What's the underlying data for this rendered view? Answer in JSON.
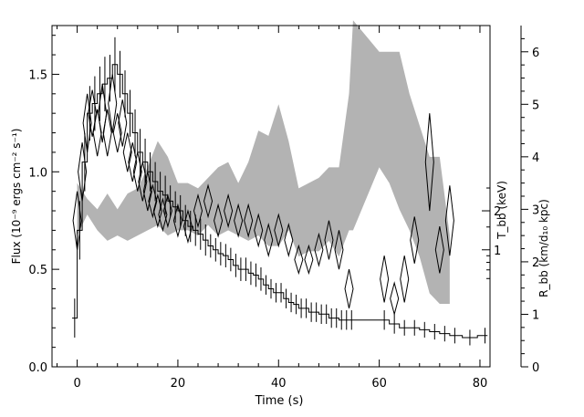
{
  "chart_data": {
    "type": "line",
    "xlabel": "Time (s)",
    "ylabel_left": "Flux (10⁻⁹ ergs cm⁻² s⁻¹)",
    "ylabel_right_kT": "T_bb (keV)",
    "ylabel_right_R": "R_bb (km/d₁₀ kpc)",
    "xlim": [
      -5,
      82
    ],
    "ylim_left": [
      0,
      1.75
    ],
    "ylim_right_R": [
      0,
      6.5
    ],
    "kT_ticks": [
      1,
      2
    ],
    "x_ticks": [
      0,
      20,
      40,
      60,
      80
    ],
    "left_ticks": [
      0.0,
      0.5,
      1.0,
      1.5
    ],
    "left_tick_labels": [
      "0.0",
      "0.5",
      "1.0",
      "1.5"
    ],
    "right_ticks": [
      0,
      1,
      2,
      3,
      4,
      5,
      6
    ],
    "flux": {
      "x": [
        -0.5,
        0.5,
        1.5,
        2.5,
        3.5,
        4.5,
        5.5,
        6.5,
        7.5,
        8.5,
        9.5,
        10.5,
        11.5,
        12.5,
        13.5,
        14.5,
        15.5,
        16.5,
        17.5,
        18.5,
        19.5,
        20.5,
        21.5,
        22.5,
        23.5,
        24.5,
        25.5,
        26.5,
        27.5,
        28.5,
        29.5,
        30.5,
        31.5,
        32.5,
        33.5,
        34.5,
        35.5,
        36.5,
        37.5,
        38.5,
        39.5,
        40.5,
        41.5,
        42.5,
        43.5,
        44.5,
        45.5,
        46.5,
        47.5,
        48.5,
        49.5,
        50.5,
        51.5,
        52.5,
        53.5,
        54.5,
        61,
        63,
        65,
        67,
        69,
        71,
        73,
        75,
        78,
        81
      ],
      "y": [
        0.25,
        0.7,
        1.05,
        1.3,
        1.35,
        1.4,
        1.45,
        1.48,
        1.55,
        1.5,
        1.4,
        1.3,
        1.2,
        1.1,
        1.05,
        1.0,
        0.95,
        0.9,
        0.88,
        0.85,
        0.82,
        0.8,
        0.75,
        0.72,
        0.7,
        0.68,
        0.65,
        0.62,
        0.6,
        0.58,
        0.57,
        0.55,
        0.52,
        0.5,
        0.5,
        0.48,
        0.47,
        0.45,
        0.42,
        0.4,
        0.38,
        0.38,
        0.35,
        0.33,
        0.32,
        0.3,
        0.3,
        0.28,
        0.28,
        0.27,
        0.27,
        0.25,
        0.25,
        0.24,
        0.24,
        0.24,
        0.24,
        0.22,
        0.2,
        0.2,
        0.19,
        0.18,
        0.17,
        0.16,
        0.15,
        0.16
      ],
      "err": [
        0.1,
        0.15,
        0.15,
        0.14,
        0.14,
        0.14,
        0.14,
        0.12,
        0.14,
        0.12,
        0.12,
        0.12,
        0.12,
        0.12,
        0.12,
        0.1,
        0.1,
        0.1,
        0.1,
        0.08,
        0.08,
        0.08,
        0.08,
        0.08,
        0.08,
        0.08,
        0.08,
        0.06,
        0.06,
        0.06,
        0.06,
        0.06,
        0.06,
        0.06,
        0.06,
        0.06,
        0.06,
        0.06,
        0.05,
        0.05,
        0.05,
        0.05,
        0.05,
        0.05,
        0.05,
        0.05,
        0.05,
        0.05,
        0.05,
        0.05,
        0.05,
        0.05,
        0.05,
        0.05,
        0.05,
        0.05,
        0.05,
        0.05,
        0.04,
        0.04,
        0.04,
        0.04,
        0.04,
        0.04,
        0.04,
        0.04
      ]
    },
    "kT": {
      "x": [
        0,
        1,
        2,
        3,
        4,
        5,
        6,
        7,
        8,
        9,
        10,
        11,
        12,
        13,
        14,
        15,
        16,
        17,
        18,
        20,
        22,
        24,
        26,
        28,
        30,
        32,
        34,
        36,
        38,
        40,
        42,
        44,
        46,
        48,
        50,
        52,
        54,
        61,
        63,
        65,
        67,
        70,
        72,
        74
      ],
      "y": [
        0.75,
        1.0,
        1.25,
        1.3,
        1.2,
        1.3,
        1.2,
        1.35,
        1.2,
        1.25,
        1.1,
        1.05,
        1.0,
        0.95,
        0.9,
        0.85,
        0.8,
        0.78,
        0.8,
        0.75,
        0.72,
        0.8,
        0.85,
        0.75,
        0.8,
        0.75,
        0.75,
        0.7,
        0.65,
        0.7,
        0.65,
        0.55,
        0.55,
        0.6,
        0.65,
        0.6,
        0.4,
        0.45,
        0.35,
        0.45,
        0.65,
        1.05,
        0.6,
        0.75
      ],
      "err": [
        0.15,
        0.15,
        0.15,
        0.12,
        0.12,
        0.15,
        0.12,
        0.15,
        0.1,
        0.12,
        0.1,
        0.1,
        0.1,
        0.1,
        0.1,
        0.08,
        0.08,
        0.08,
        0.08,
        0.08,
        0.08,
        0.08,
        0.08,
        0.08,
        0.08,
        0.08,
        0.08,
        0.08,
        0.08,
        0.08,
        0.08,
        0.07,
        0.07,
        0.08,
        0.1,
        0.1,
        0.1,
        0.12,
        0.08,
        0.12,
        0.12,
        0.25,
        0.12,
        0.18
      ]
    },
    "radius_band": {
      "x": [
        0,
        2,
        4,
        6,
        8,
        10,
        12,
        14,
        16,
        18,
        20,
        22,
        24,
        26,
        28,
        30,
        32,
        34,
        36,
        38,
        40,
        42,
        44,
        46,
        48,
        50,
        52,
        54,
        54.8,
        60,
        62,
        64,
        66,
        68,
        70,
        72,
        74
      ],
      "upper": [
        3.5,
        3.2,
        3.0,
        3.3,
        3.0,
        3.3,
        3.4,
        3.8,
        4.3,
        4.0,
        3.5,
        3.5,
        3.4,
        3.6,
        3.8,
        3.9,
        3.5,
        3.9,
        4.5,
        4.4,
        5.0,
        4.3,
        3.4,
        3.5,
        3.6,
        3.8,
        3.8,
        5.2,
        6.6,
        6.0,
        6.0,
        6.0,
        5.2,
        4.6,
        4.0,
        4.0,
        2.5
      ],
      "lower": [
        2.5,
        2.9,
        2.6,
        2.4,
        2.5,
        2.4,
        2.5,
        2.6,
        2.7,
        2.5,
        2.6,
        2.6,
        2.5,
        2.7,
        2.5,
        2.6,
        2.5,
        2.4,
        2.5,
        2.3,
        2.3,
        2.6,
        2.1,
        2.2,
        2.2,
        2.4,
        2.1,
        2.6,
        2.6,
        3.8,
        3.5,
        3.0,
        2.6,
        2.1,
        1.4,
        1.2,
        1.2
      ]
    }
  }
}
